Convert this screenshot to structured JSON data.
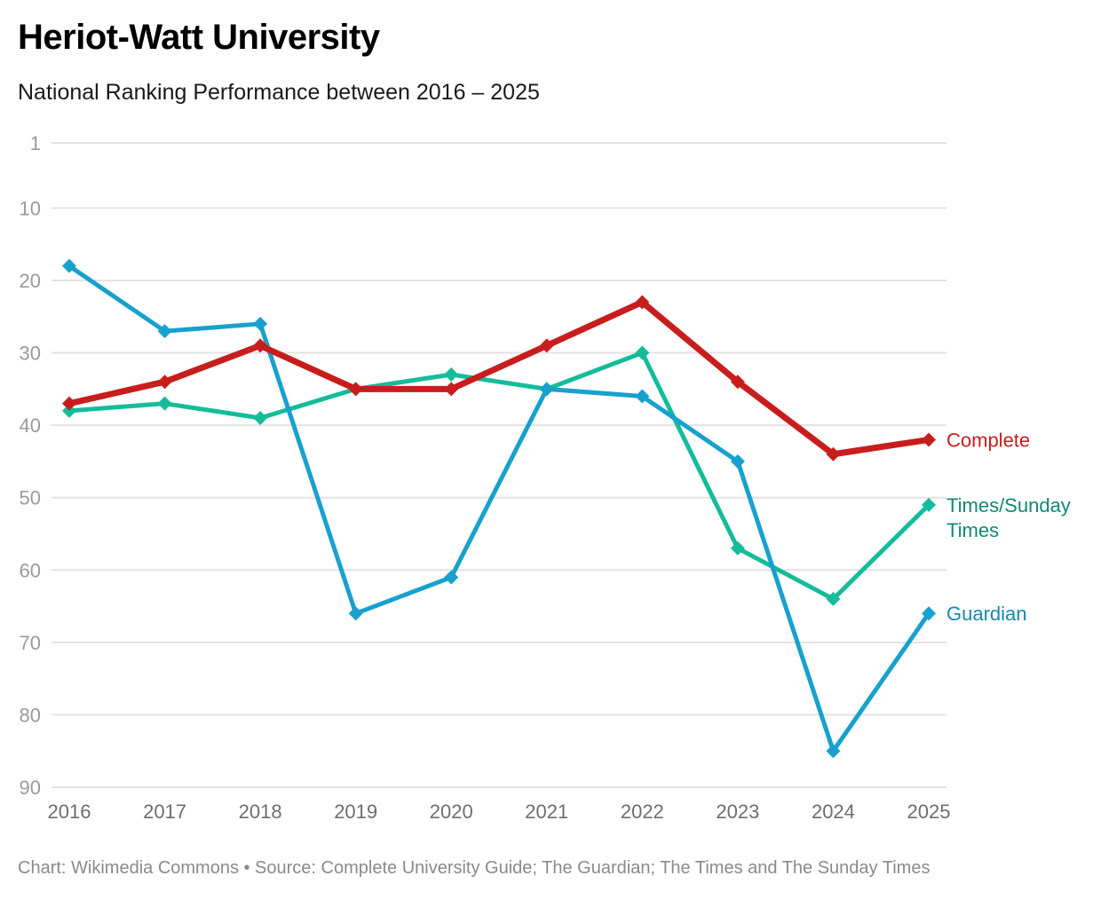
{
  "header": {
    "title": "Heriot-Watt University",
    "subtitle": "National Ranking Performance between 2016 – 2025"
  },
  "footer": {
    "credit": "Chart: Wikimedia Commons • Source: Complete University Guide; The Guardian; The Times and The Sunday Times"
  },
  "chart_data": {
    "type": "line",
    "title": "Heriot-Watt University",
    "subtitle": "National Ranking Performance between 2016 – 2025",
    "xlabel": "",
    "ylabel": "",
    "x": [
      "2016",
      "2017",
      "2018",
      "2019",
      "2020",
      "2021",
      "2022",
      "2023",
      "2024",
      "2025"
    ],
    "yticks": [
      1,
      10,
      20,
      30,
      40,
      50,
      60,
      70,
      80,
      90
    ],
    "ylim": [
      1,
      90
    ],
    "y_inverted": true,
    "grid": true,
    "legend": "direct-labels-right",
    "series": [
      {
        "name": "Complete",
        "color": "#c71e1d",
        "values": [
          37,
          34,
          29,
          35,
          35,
          29,
          23,
          34,
          44,
          42
        ]
      },
      {
        "name": "Times/Sunday Times",
        "label_lines": [
          "Times/Sunday",
          "Times"
        ],
        "color": "#15bc9a",
        "label_color": "#0e8a70",
        "values": [
          38,
          37,
          39,
          35,
          33,
          35,
          30,
          57,
          64,
          51
        ]
      },
      {
        "name": "Guardian",
        "color": "#18a1cd",
        "label_color": "#1488ad",
        "values": [
          18,
          27,
          26,
          66,
          61,
          35,
          36,
          45,
          85,
          66
        ]
      }
    ],
    "source": "Complete University Guide; The Guardian; The Times and The Sunday Times"
  }
}
